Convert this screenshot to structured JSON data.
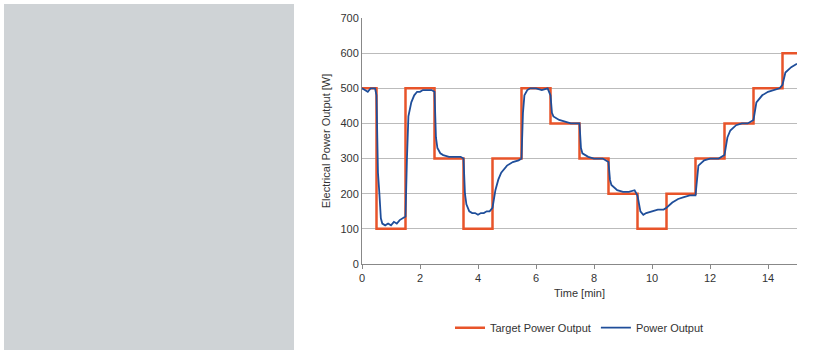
{
  "chart_data": {
    "type": "line",
    "x_label": "Time [min]",
    "y_label": "Electrical Power Output [W]",
    "xlim": [
      0,
      15
    ],
    "xticks": [
      0,
      2,
      4,
      6,
      8,
      10,
      12,
      14
    ],
    "ylim": [
      0,
      700
    ],
    "yticks": [
      0,
      100,
      200,
      300,
      400,
      500,
      600,
      700
    ],
    "grid": true,
    "legend": "bottom",
    "series": [
      {
        "name": "Target Power Output",
        "color": "#e8542a",
        "line_style": "step",
        "x": [
          0,
          0.5,
          1.5,
          2.5,
          3.5,
          4.5,
          5.5,
          6.5,
          7.5,
          8.5,
          9.5,
          10.5,
          11.5,
          12.5,
          13.5,
          14.5,
          15
        ],
        "values": [
          500,
          100,
          500,
          300,
          100,
          300,
          500,
          400,
          300,
          200,
          100,
          200,
          300,
          400,
          500,
          600,
          600
        ]
      },
      {
        "name": "Power Output",
        "color": "#1f4e9a",
        "line_style": "solid",
        "x": [
          0,
          0.1,
          0.2,
          0.3,
          0.45,
          0.5,
          0.55,
          0.6,
          0.65,
          0.7,
          0.8,
          0.9,
          1.0,
          1.1,
          1.2,
          1.3,
          1.4,
          1.5,
          1.55,
          1.6,
          1.7,
          1.8,
          1.9,
          2.0,
          2.1,
          2.2,
          2.3,
          2.4,
          2.5,
          2.55,
          2.6,
          2.7,
          2.8,
          2.9,
          3.0,
          3.2,
          3.4,
          3.5,
          3.55,
          3.6,
          3.7,
          3.8,
          3.9,
          4.0,
          4.1,
          4.2,
          4.3,
          4.4,
          4.5,
          4.6,
          4.7,
          4.8,
          4.9,
          5.0,
          5.2,
          5.4,
          5.5,
          5.55,
          5.6,
          5.7,
          5.8,
          6.0,
          6.2,
          6.4,
          6.5,
          6.55,
          6.6,
          6.8,
          7.0,
          7.2,
          7.5,
          7.55,
          7.6,
          7.8,
          8.0,
          8.3,
          8.5,
          8.55,
          8.6,
          8.8,
          9.0,
          9.2,
          9.4,
          9.5,
          9.6,
          9.7,
          9.8,
          10.0,
          10.2,
          10.4,
          10.5,
          10.7,
          10.9,
          11.1,
          11.3,
          11.5,
          11.55,
          11.6,
          11.8,
          12.0,
          12.3,
          12.5,
          12.6,
          12.7,
          12.9,
          13.1,
          13.3,
          13.5,
          13.6,
          13.8,
          14.0,
          14.2,
          14.4,
          14.5,
          14.6,
          14.8,
          15.0
        ],
        "values": [
          500,
          495,
          490,
          500,
          500,
          480,
          260,
          200,
          130,
          115,
          110,
          115,
          110,
          120,
          115,
          125,
          130,
          135,
          300,
          420,
          460,
          480,
          490,
          490,
          495,
          495,
          495,
          495,
          490,
          360,
          330,
          315,
          310,
          308,
          305,
          305,
          305,
          300,
          200,
          170,
          150,
          145,
          145,
          140,
          145,
          145,
          150,
          150,
          160,
          210,
          240,
          260,
          270,
          280,
          290,
          295,
          300,
          430,
          480,
          495,
          500,
          500,
          495,
          500,
          480,
          430,
          420,
          410,
          405,
          400,
          400,
          330,
          315,
          305,
          300,
          300,
          290,
          240,
          225,
          210,
          205,
          205,
          210,
          195,
          150,
          140,
          145,
          150,
          155,
          155,
          160,
          175,
          185,
          190,
          195,
          195,
          250,
          280,
          295,
          300,
          300,
          310,
          360,
          380,
          395,
          400,
          400,
          410,
          460,
          480,
          490,
          495,
          500,
          510,
          545,
          560,
          570
        ]
      }
    ]
  }
}
